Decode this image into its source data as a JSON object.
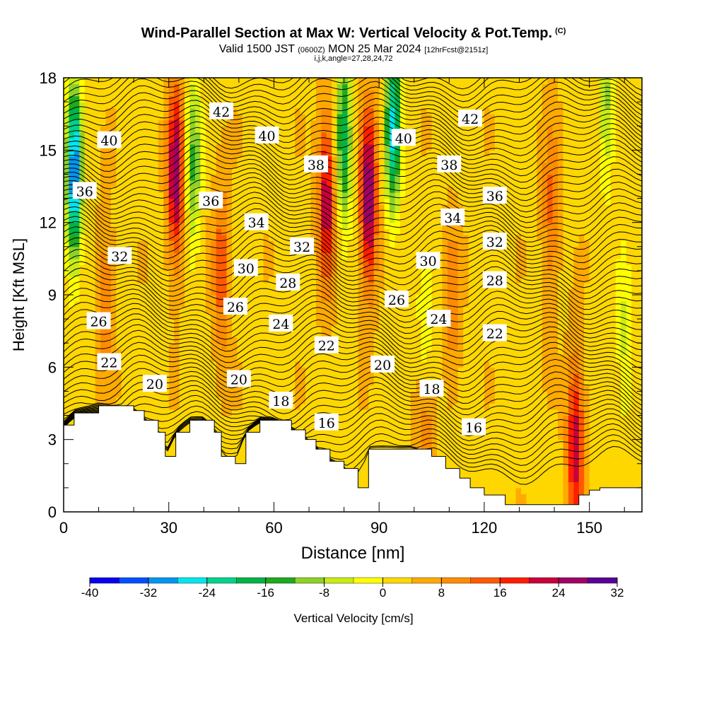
{
  "title": {
    "main": "Wind-Parallel Section at Max W: Vertical Velocity & Pot.Temp.",
    "copyright": "(C)",
    "valid_prefix": "Valid 1500 JST",
    "valid_utc": "(0600Z)",
    "valid_date": "MON 25 Mar 2024",
    "forecast": "[12hrFcst@2151z]",
    "params": "i,j,k,angle=27,28,24,72"
  },
  "chart_data": {
    "type": "heatmap",
    "xlabel": "Distance [nm]",
    "ylabel": "Height [Kft MSL]",
    "xlim": [
      0,
      165
    ],
    "ylim": [
      0,
      18
    ],
    "x_ticks": [
      0,
      30,
      60,
      90,
      120,
      150
    ],
    "y_ticks": [
      0,
      3,
      6,
      9,
      12,
      15,
      18
    ],
    "colorbar": {
      "label": "Vertical Velocity [cm/s]",
      "ticks": [
        -40,
        -32,
        -24,
        -16,
        -8,
        0,
        8,
        16,
        24,
        32
      ],
      "step": 4,
      "colors": [
        "#0a00f0",
        "#0050ff",
        "#0096f0",
        "#00e6f0",
        "#00d28c",
        "#00b446",
        "#1eaa1e",
        "#8cd228",
        "#c8ec14",
        "#ffff00",
        "#ffd700",
        "#ffaa00",
        "#ff8c00",
        "#ff5a00",
        "#ff1e00",
        "#c8003c",
        "#a00064",
        "#5a0096"
      ]
    },
    "theta_contour_labels": [
      {
        "label": "42",
        "x": 45,
        "y": 16.6
      },
      {
        "label": "42",
        "x": 116,
        "y": 16.3
      },
      {
        "label": "40",
        "x": 13,
        "y": 15.4
      },
      {
        "label": "40",
        "x": 58,
        "y": 15.6
      },
      {
        "label": "40",
        "x": 97,
        "y": 15.5
      },
      {
        "label": "38",
        "x": 72,
        "y": 14.4
      },
      {
        "label": "38",
        "x": 110,
        "y": 14.4
      },
      {
        "label": "36",
        "x": 6,
        "y": 13.3
      },
      {
        "label": "36",
        "x": 42,
        "y": 12.9
      },
      {
        "label": "36",
        "x": 123,
        "y": 13.1
      },
      {
        "label": "34",
        "x": 55,
        "y": 12.0
      },
      {
        "label": "34",
        "x": 111,
        "y": 12.2
      },
      {
        "label": "32",
        "x": 16,
        "y": 10.6
      },
      {
        "label": "32",
        "x": 68,
        "y": 11.0
      },
      {
        "label": "32",
        "x": 123,
        "y": 11.2
      },
      {
        "label": "30",
        "x": 52,
        "y": 10.1
      },
      {
        "label": "30",
        "x": 104,
        "y": 10.4
      },
      {
        "label": "28",
        "x": 64,
        "y": 9.5
      },
      {
        "label": "28",
        "x": 123,
        "y": 9.6
      },
      {
        "label": "26",
        "x": 10,
        "y": 7.9
      },
      {
        "label": "26",
        "x": 49,
        "y": 8.5
      },
      {
        "label": "26",
        "x": 95,
        "y": 8.8
      },
      {
        "label": "24",
        "x": 62,
        "y": 7.8
      },
      {
        "label": "24",
        "x": 107,
        "y": 8.0
      },
      {
        "label": "22",
        "x": 13,
        "y": 6.2
      },
      {
        "label": "22",
        "x": 75,
        "y": 6.9
      },
      {
        "label": "22",
        "x": 123,
        "y": 7.4
      },
      {
        "label": "20",
        "x": 26,
        "y": 5.3
      },
      {
        "label": "20",
        "x": 50,
        "y": 5.5
      },
      {
        "label": "20",
        "x": 91,
        "y": 6.1
      },
      {
        "label": "18",
        "x": 62,
        "y": 4.6
      },
      {
        "label": "18",
        "x": 105,
        "y": 5.1
      },
      {
        "label": "16",
        "x": 75,
        "y": 3.7
      },
      {
        "label": "16",
        "x": 117,
        "y": 3.5
      }
    ],
    "vertical_velocity_features": [
      {
        "x": 32,
        "y": 14.0,
        "w": 24,
        "note": "updraft"
      },
      {
        "x": 45,
        "y": 10.0,
        "w": 12
      },
      {
        "x": 75,
        "y": 13.0,
        "w": 20
      },
      {
        "x": 87,
        "y": 13.0,
        "w": 26
      },
      {
        "x": 146,
        "y": 2.8,
        "w": 20
      },
      {
        "x": 103,
        "y": 3.3,
        "w": 12
      },
      {
        "x": 139,
        "y": 12.5,
        "w": 10
      },
      {
        "x": 111,
        "y": 8.5,
        "w": 8
      },
      {
        "x": 12,
        "y": 9.0,
        "w": 8
      },
      {
        "x": 3,
        "y": 14.0,
        "w": -36,
        "note": "downdraft"
      },
      {
        "x": 37,
        "y": 14.5,
        "w": -16
      },
      {
        "x": 80,
        "y": 15.5,
        "w": -22
      },
      {
        "x": 94,
        "y": 16.0,
        "w": -28
      },
      {
        "x": 103,
        "y": 6.3,
        "w": -10
      },
      {
        "x": 155,
        "y": 17.0,
        "w": -12
      },
      {
        "x": 160,
        "y": 7.2,
        "w": -8
      }
    ],
    "terrain": [
      {
        "x": 0,
        "h": 3.6
      },
      {
        "x": 3,
        "h": 4.1
      },
      {
        "x": 10,
        "h": 4.4
      },
      {
        "x": 20,
        "h": 4.2
      },
      {
        "x": 23,
        "h": 3.8
      },
      {
        "x": 27,
        "h": 3.3
      },
      {
        "x": 29,
        "h": 2.3
      },
      {
        "x": 32,
        "h": 3.3
      },
      {
        "x": 36,
        "h": 3.8
      },
      {
        "x": 40,
        "h": 3.8
      },
      {
        "x": 43,
        "h": 3.3
      },
      {
        "x": 45,
        "h": 2.3
      },
      {
        "x": 49,
        "h": 2.0
      },
      {
        "x": 52,
        "h": 3.3
      },
      {
        "x": 56,
        "h": 3.8
      },
      {
        "x": 60,
        "h": 3.8
      },
      {
        "x": 65,
        "h": 3.4
      },
      {
        "x": 69,
        "h": 3.0
      },
      {
        "x": 72,
        "h": 2.6
      },
      {
        "x": 76,
        "h": 2.1
      },
      {
        "x": 80,
        "h": 1.8
      },
      {
        "x": 84,
        "h": 1.0
      },
      {
        "x": 87,
        "h": 2.6
      },
      {
        "x": 92,
        "h": 2.6
      },
      {
        "x": 99,
        "h": 2.6
      },
      {
        "x": 105,
        "h": 2.3
      },
      {
        "x": 109,
        "h": 1.8
      },
      {
        "x": 113,
        "h": 1.4
      },
      {
        "x": 116,
        "h": 1.0
      },
      {
        "x": 120,
        "h": 0.7
      },
      {
        "x": 126,
        "h": 0.3
      },
      {
        "x": 130,
        "h": 0.3
      },
      {
        "x": 143,
        "h": 0.3
      },
      {
        "x": 147,
        "h": 0.7
      },
      {
        "x": 150,
        "h": 0.9
      },
      {
        "x": 153,
        "h": 1.0
      },
      {
        "x": 165,
        "h": 1.0
      }
    ]
  }
}
